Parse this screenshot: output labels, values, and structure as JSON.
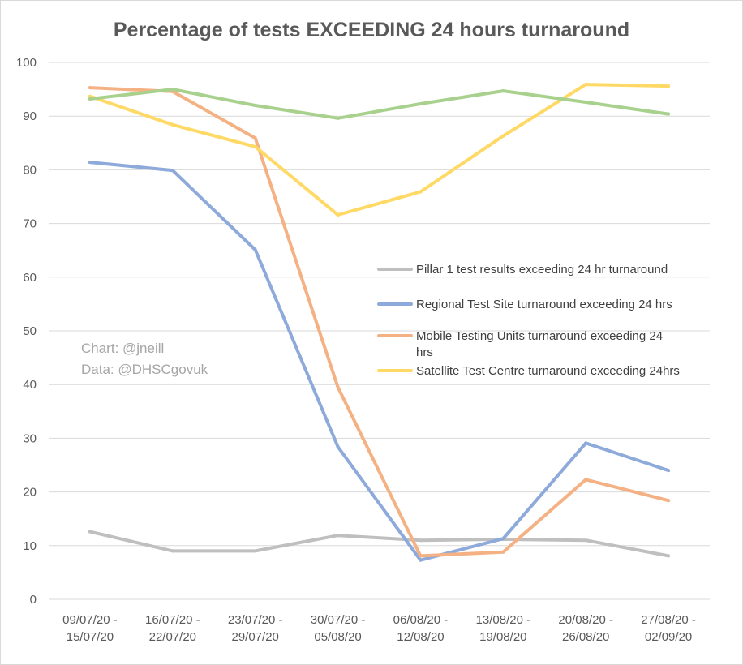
{
  "chart_data": {
    "type": "line",
    "title": "Percentage of tests EXCEEDING 24 hours turnaround",
    "xlabel": "",
    "ylabel": "",
    "ylim": [
      0,
      100
    ],
    "y_ticks": [
      "0",
      "10",
      "20",
      "30",
      "40",
      "50",
      "60",
      "70",
      "80",
      "90",
      "100"
    ],
    "grid": "horizontal",
    "legend_position": "right",
    "categories": [
      [
        "09/07/20 -",
        "15/07/20"
      ],
      [
        "16/07/20 -",
        "22/07/20"
      ],
      [
        "23/07/20 -",
        "29/07/20"
      ],
      [
        "30/07/20 -",
        "05/08/20"
      ],
      [
        "06/08/20 -",
        "12/08/20"
      ],
      [
        "13/08/20 -",
        "19/08/20"
      ],
      [
        "20/08/20 -",
        "26/08/20"
      ],
      [
        "27/08/20 -",
        "02/09/20"
      ]
    ],
    "series": [
      {
        "name": "Pillar 1 test results exceeding 24 hr turnaround",
        "legend_lines": [
          "Pillar 1 test results exceeding 24 hr turnaround"
        ],
        "color": "#bfbfbf",
        "values": [
          12.6,
          9.0,
          9.0,
          11.9,
          11.0,
          11.2,
          11.0,
          8.1
        ]
      },
      {
        "name": "Regional Test Site turnaround exceeding 24 hrs",
        "legend_lines": [
          "Regional Test Site turnaround exceeding 24 hrs"
        ],
        "color": "#8eaadb",
        "values": [
          81.4,
          79.9,
          65.1,
          28.4,
          7.3,
          11.3,
          29.1,
          24.0
        ]
      },
      {
        "name": "Mobile Testing Units turnaround exceeding 24 hrs",
        "legend_lines": [
          "Mobile Testing Units turnaround exceeding 24",
          "hrs"
        ],
        "color": "#f4b183",
        "values": [
          95.3,
          94.6,
          85.9,
          39.5,
          8.1,
          8.8,
          22.3,
          18.4
        ]
      },
      {
        "name": "Satellite Test Centre turnaround exceeding 24hrs",
        "legend_lines": [
          "Satellite Test Centre turnaround exceeding 24hrs"
        ],
        "color": "#ffd966",
        "values": [
          93.7,
          88.4,
          84.3,
          71.6,
          75.9,
          86.3,
          95.9,
          95.6
        ]
      },
      {
        "color": "#a9d18e",
        "values": [
          93.2,
          95.0,
          92.0,
          89.6,
          92.3,
          94.7,
          92.6,
          90.4
        ]
      }
    ],
    "annotations": [
      "Chart: @jneill",
      "Data: @DHSCgovuk"
    ]
  }
}
